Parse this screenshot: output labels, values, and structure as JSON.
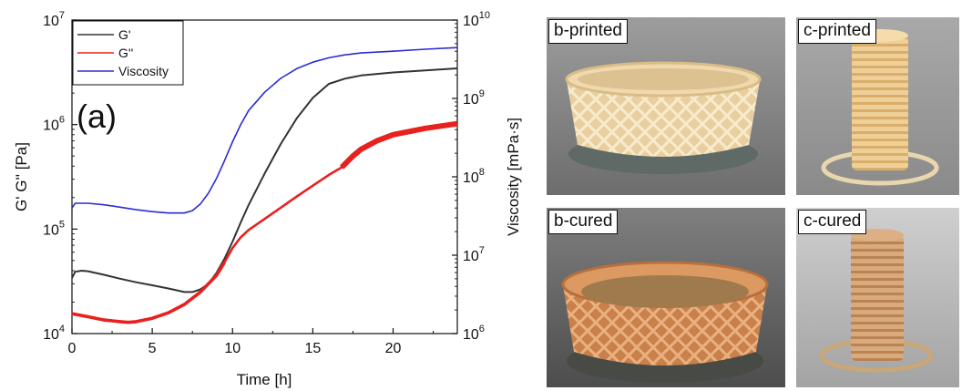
{
  "chart_data": {
    "type": "line",
    "panel_label": "(a)",
    "xlabel": "Time [h]",
    "ylabel_left": "G' G'' [Pa]",
    "ylabel_right": "Viscosity [mPa·s]",
    "xlim": [
      0,
      24
    ],
    "ylim_left": [
      10000,
      10000000
    ],
    "ylim_right": [
      1000000,
      10000000000
    ],
    "yscale": "log",
    "x_ticks": [
      "0",
      "5",
      "10",
      "15",
      "20"
    ],
    "x_tick_values": [
      0,
      5,
      10,
      15,
      20
    ],
    "y_left_ticks": [
      {
        "base": "10",
        "exp": "4"
      },
      {
        "base": "10",
        "exp": "5"
      },
      {
        "base": "10",
        "exp": "6"
      },
      {
        "base": "10",
        "exp": "7"
      }
    ],
    "y_right_ticks": [
      {
        "base": "10",
        "exp": "6"
      },
      {
        "base": "10",
        "exp": "7"
      },
      {
        "base": "10",
        "exp": "8"
      },
      {
        "base": "10",
        "exp": "9"
      },
      {
        "base": "10",
        "exp": "10"
      }
    ],
    "grid": false,
    "legend_position": "top-left",
    "series": [
      {
        "name": "G'",
        "color": "#333333",
        "axis": "left",
        "x": [
          0,
          0.2,
          0.6,
          1,
          2,
          3,
          4,
          5,
          6,
          7,
          7.5,
          8,
          8.5,
          9,
          9.5,
          10,
          10.5,
          11,
          12,
          13,
          14,
          15,
          16,
          17,
          18,
          20,
          22,
          24
        ],
        "y": [
          34000,
          39000,
          40000,
          39500,
          36500,
          33500,
          31000,
          29000,
          27000,
          25000,
          25000,
          26500,
          30000,
          38000,
          52000,
          76000,
          115000,
          170000,
          340000,
          650000,
          1150000,
          1800000,
          2450000,
          2750000,
          2950000,
          3150000,
          3300000,
          3450000
        ]
      },
      {
        "name": "G''",
        "color": "#e8201e",
        "axis": "left",
        "x": [
          0,
          1,
          2,
          3,
          3.5,
          4,
          5,
          6,
          7,
          8,
          9,
          9.5,
          10,
          10.5,
          11,
          12,
          13,
          14,
          15,
          16,
          16.8,
          17.5,
          18,
          19,
          20,
          22,
          24
        ],
        "y": [
          15500,
          14500,
          13500,
          13000,
          12800,
          13000,
          14000,
          15800,
          19000,
          25000,
          36000,
          48000,
          66000,
          83000,
          98000,
          125000,
          160000,
          205000,
          260000,
          330000,
          390000,
          500000,
          580000,
          700000,
          800000,
          920000,
          1020000
        ]
      },
      {
        "name": "Viscosity",
        "color": "#2b2bd6",
        "axis": "right",
        "x": [
          0,
          0.2,
          1,
          2,
          3,
          4,
          5,
          6,
          7,
          7.5,
          8,
          8.5,
          9,
          9.5,
          10,
          10.5,
          11,
          12,
          13,
          14,
          15,
          16,
          17,
          18,
          20,
          22,
          24
        ],
        "y": [
          40000000,
          46000000,
          46000000,
          44000000,
          41000000,
          38000000,
          36000000,
          34500000,
          34500000,
          37000000,
          45000000,
          62000000,
          95000000,
          160000000,
          280000000,
          460000000,
          700000000,
          1200000000,
          1800000000,
          2400000000,
          2900000000,
          3300000000,
          3600000000,
          3800000000,
          4000000000,
          4250000000,
          4450000000
        ]
      }
    ]
  },
  "photos": [
    {
      "label": "b-printed"
    },
    {
      "label": "c-printed"
    },
    {
      "label": "b-cured"
    },
    {
      "label": "c-cured"
    }
  ]
}
